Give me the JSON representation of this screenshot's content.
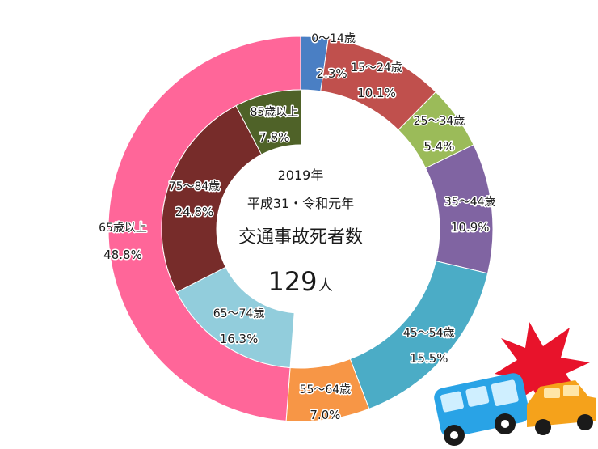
{
  "chart_data": {
    "type": "pie",
    "style": "double-donut",
    "center_text": {
      "year": "2019年",
      "era": "平成31・令和元年",
      "title": "交通事故死者数",
      "count": "129",
      "unit": "人"
    },
    "outer_ring": [
      {
        "label": "0～14歳",
        "percent_text": "2.3%",
        "value": 2.3,
        "color": "#4a7fc4"
      },
      {
        "label": "15～24歳",
        "percent_text": "10.1%",
        "value": 10.1,
        "color": "#c0504d"
      },
      {
        "label": "25～34歳",
        "percent_text": "5.4%",
        "value": 5.4,
        "color": "#9bbb59"
      },
      {
        "label": "35～44歳",
        "percent_text": "10.9%",
        "value": 10.9,
        "color": "#8064a2"
      },
      {
        "label": "45～54歳",
        "percent_text": "15.5%",
        "value": 15.5,
        "color": "#4bacc6"
      },
      {
        "label": "55～64歳",
        "percent_text": "7.0%",
        "value": 7.0,
        "color": "#f79646"
      },
      {
        "label": "65歳以上",
        "percent_text": "48.8%",
        "value": 48.8,
        "color": "#ff6699"
      }
    ],
    "inner_ring": [
      {
        "label": "65～74歳",
        "percent_text": "16.3%",
        "value": 16.3,
        "color": "#92cddc"
      },
      {
        "label": "75～84歳",
        "percent_text": "24.8%",
        "value": 24.8,
        "color": "#772c2a"
      },
      {
        "label": "85歳以上",
        "percent_text": "7.8%",
        "value": 7.8,
        "color": "#4f6228"
      }
    ],
    "illustration": {
      "bus_color": "#29a3e6",
      "car_color": "#f5a21b",
      "burst_color": "#e8132b",
      "name": "car-crash-illustration"
    }
  }
}
